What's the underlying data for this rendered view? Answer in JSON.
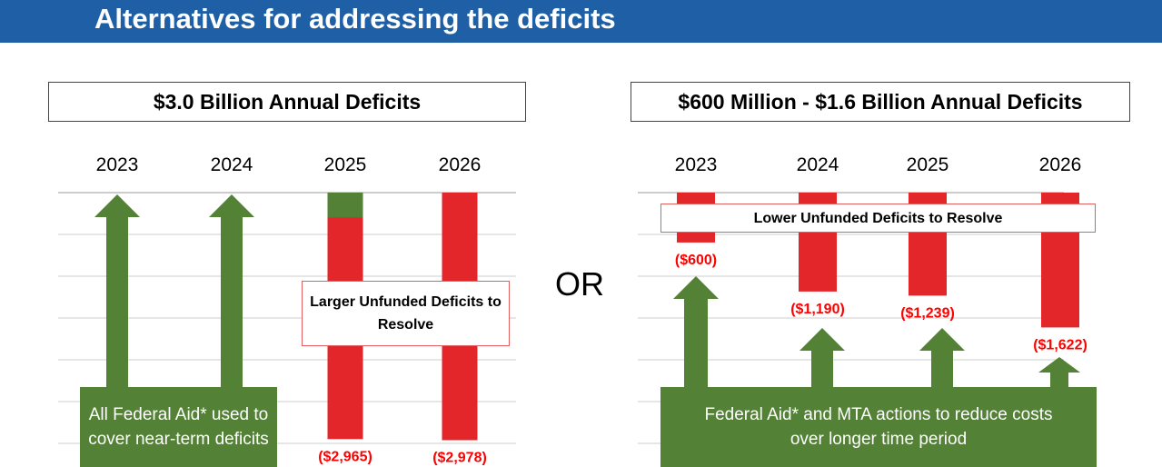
{
  "header": {
    "title": "Alternatives for addressing the deficits"
  },
  "or_label": "OR",
  "colors": {
    "header": "#1f5fa6",
    "deficit": "#e3262a",
    "aid": "#538135",
    "label": "#ff0000"
  },
  "chart_data": [
    {
      "type": "bar",
      "title": "$3.0 Billion Annual Deficits",
      "categories": [
        "2023",
        "2024",
        "2025",
        "2026"
      ],
      "values": [
        null,
        null,
        -2965,
        -2978
      ],
      "covered_by_aid_top_segment": [
        null,
        null,
        300,
        null
      ],
      "data_labels": [
        "",
        "",
        "($2,965)",
        "($2,978)"
      ],
      "aid_arrows": [
        "2023",
        "2024"
      ],
      "annotation_box": "Larger Unfunded Deficits to Resolve",
      "aid_box": "All Federal Aid* used to cover near-term deficits",
      "grid": true
    },
    {
      "type": "bar",
      "title": "$600 Million - $1.6 Billion Annual Deficits",
      "categories": [
        "2023",
        "2024",
        "2025",
        "2026"
      ],
      "values": [
        -600,
        -1190,
        -1239,
        -1622
      ],
      "data_labels": [
        "($600)",
        "($1,190)",
        "($1,239)",
        "($1,622)"
      ],
      "aid_arrows": [
        "2023",
        "2024",
        "2025",
        "2026"
      ],
      "annotation_box": "Lower Unfunded Deficits to Resolve",
      "aid_box": "Federal Aid* and MTA actions to reduce costs over longer time period",
      "grid": true
    }
  ]
}
